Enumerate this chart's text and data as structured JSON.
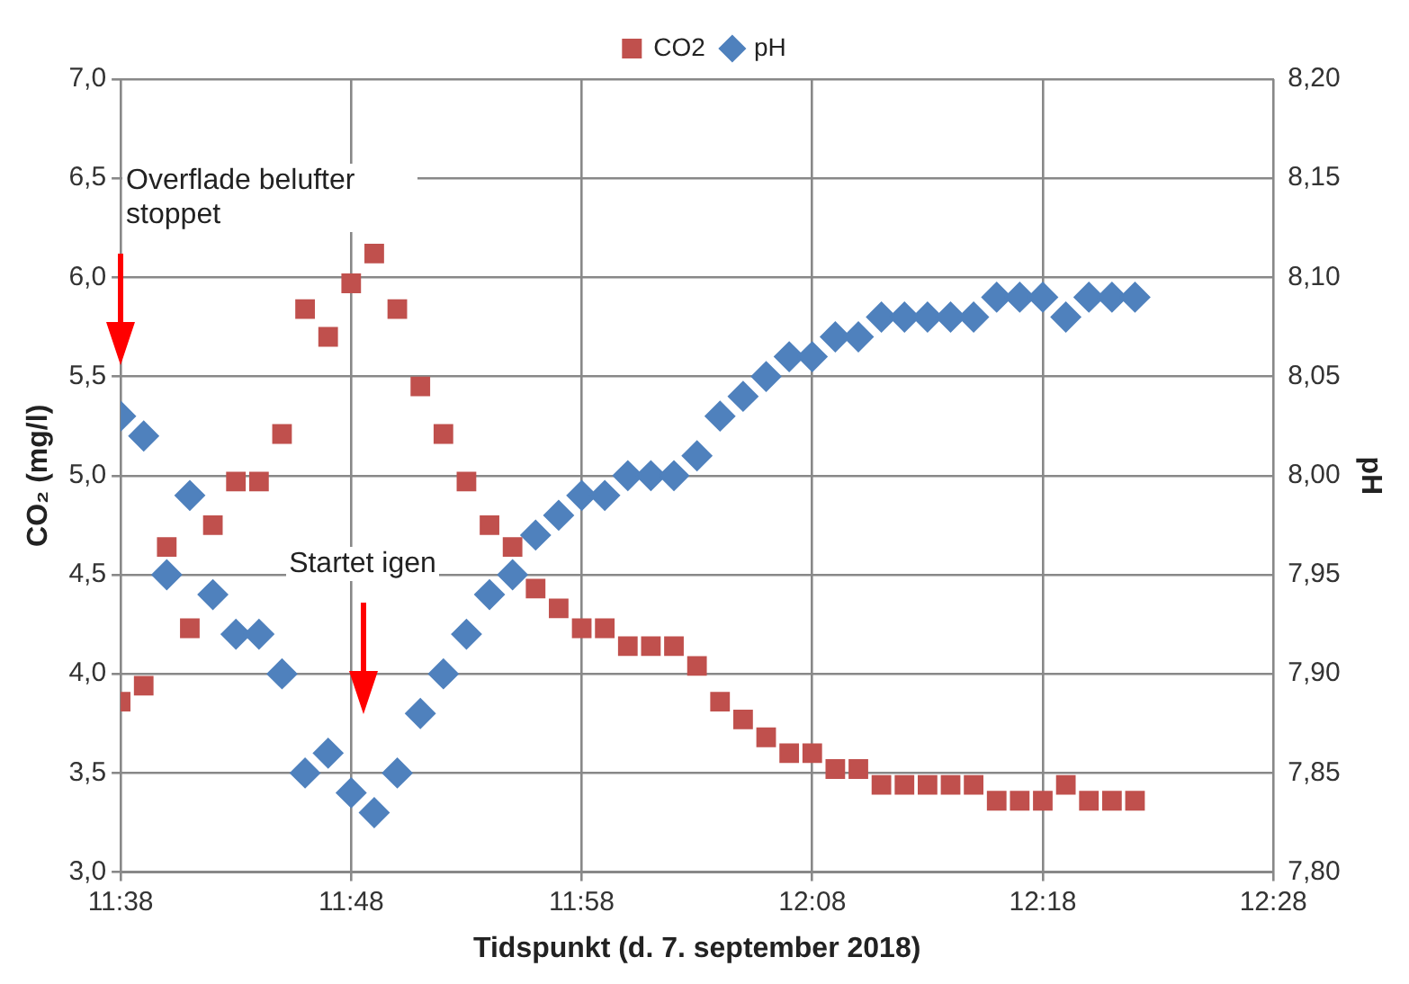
{
  "chart_data": {
    "type": "scatter",
    "xlabel": "Tidspunkt (d. 7. september 2018)",
    "ylabel": "CO₂ (mg/l)",
    "y2label": "pH",
    "x": [
      11.633333,
      11.65,
      11.666667,
      11.683333,
      11.7,
      11.716667,
      11.733333,
      11.75,
      11.766667,
      11.783333,
      11.8,
      11.816667,
      11.833333,
      11.85,
      11.866667,
      11.883333,
      11.9,
      11.916667,
      11.933333,
      11.95,
      11.966667,
      11.983333,
      12.0,
      12.016667,
      12.033333,
      12.05,
      12.066667,
      12.083333,
      12.1,
      12.116667,
      12.133333,
      12.15,
      12.166667,
      12.183333,
      12.2,
      12.216667,
      12.233333,
      12.25,
      12.266667,
      12.283333,
      12.3,
      12.316667,
      12.333333,
      12.35,
      12.366667
    ],
    "series": [
      {
        "name": "CO2",
        "color": "#c0504d",
        "marker": "square",
        "values": [
          3.86,
          3.94,
          4.64,
          4.23,
          4.75,
          4.97,
          4.97,
          5.21,
          5.84,
          5.7,
          5.97,
          6.12,
          5.84,
          5.45,
          5.21,
          4.97,
          4.75,
          4.64,
          4.43,
          4.33,
          4.23,
          4.23,
          4.14,
          4.14,
          4.14,
          4.04,
          3.86,
          3.77,
          3.68,
          3.6,
          3.6,
          3.52,
          3.52,
          3.44,
          3.44,
          3.44,
          3.44,
          3.44,
          3.36,
          3.36,
          3.36,
          3.44,
          3.36,
          3.36,
          3.36
        ]
      },
      {
        "name": "pH",
        "color": "#4f81bd",
        "marker": "diamond",
        "axis": "y2",
        "values": [
          8.03,
          8.02,
          7.95,
          7.99,
          7.94,
          7.92,
          7.92,
          7.9,
          7.85,
          7.86,
          7.84,
          7.83,
          7.85,
          7.88,
          7.9,
          7.92,
          7.94,
          7.95,
          7.97,
          7.98,
          7.99,
          7.99,
          8.0,
          8.0,
          8.0,
          8.01,
          8.03,
          8.04,
          8.05,
          8.06,
          8.06,
          8.07,
          8.07,
          8.08,
          8.08,
          8.08,
          8.08,
          8.08,
          8.09,
          8.09,
          8.09,
          8.08,
          8.09,
          8.09,
          8.09
        ]
      }
    ],
    "xlim": [
      11.633333,
      12.466667
    ],
    "xticks": [
      {
        "value": 11.633333,
        "label": "11:38"
      },
      {
        "value": 11.8,
        "label": "11:48"
      },
      {
        "value": 11.966667,
        "label": "11:58"
      },
      {
        "value": 12.133333,
        "label": "12:08"
      },
      {
        "value": 12.3,
        "label": "12:18"
      },
      {
        "value": 12.466667,
        "label": "12:28"
      }
    ],
    "ylim": [
      3.0,
      7.0
    ],
    "yticks": [
      {
        "value": 3.0,
        "label": "3,0"
      },
      {
        "value": 3.5,
        "label": "3,5"
      },
      {
        "value": 4.0,
        "label": "4,0"
      },
      {
        "value": 4.5,
        "label": "4,5"
      },
      {
        "value": 5.0,
        "label": "5,0"
      },
      {
        "value": 5.5,
        "label": "5,5"
      },
      {
        "value": 6.0,
        "label": "6,0"
      },
      {
        "value": 6.5,
        "label": "6,5"
      },
      {
        "value": 7.0,
        "label": "7,0"
      }
    ],
    "y2lim": [
      7.8,
      8.2
    ],
    "y2ticks": [
      {
        "value": 7.8,
        "label": "7,80"
      },
      {
        "value": 7.85,
        "label": "7,85"
      },
      {
        "value": 7.9,
        "label": "7,90"
      },
      {
        "value": 7.95,
        "label": "7,95"
      },
      {
        "value": 8.0,
        "label": "8,00"
      },
      {
        "value": 8.05,
        "label": "8,05"
      },
      {
        "value": 8.1,
        "label": "8,10"
      },
      {
        "value": 8.15,
        "label": "8,15"
      },
      {
        "value": 8.2,
        "label": "8,20"
      }
    ],
    "annotations": [
      "Overflade belufter stoppet",
      "Startet igen"
    ],
    "grid": true,
    "legend": "top"
  }
}
